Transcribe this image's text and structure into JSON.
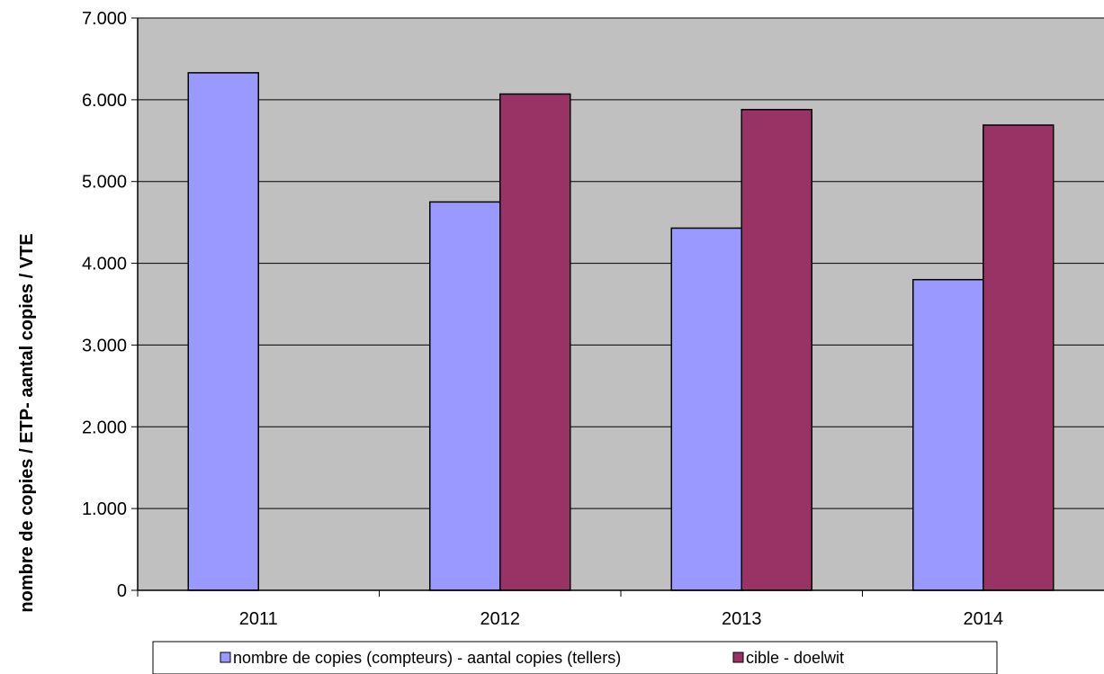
{
  "chart_data": {
    "type": "bar",
    "title": "",
    "xlabel": "",
    "ylabel": "nombre de copies / ETP- aantal copies / VTE",
    "categories": [
      "2011",
      "2012",
      "2013",
      "2014"
    ],
    "ylim": [
      0,
      7000
    ],
    "yticks": [
      0,
      1000,
      2000,
      3000,
      4000,
      5000,
      6000,
      7000
    ],
    "ytick_labels": [
      "0",
      "1.000",
      "2.000",
      "3.000",
      "4.000",
      "5.000",
      "6.000",
      "7.000"
    ],
    "grid": true,
    "legend_position": "bottom",
    "series": [
      {
        "name": "nombre de copies (compteurs) - aantal copies (tellers)",
        "color": "#9999ff",
        "values": [
          6330,
          4750,
          4430,
          3800
        ]
      },
      {
        "name": "cible - doelwit",
        "color": "#993366",
        "values": [
          null,
          6070,
          5880,
          5690
        ]
      }
    ],
    "plot_background": "#c0c0c0"
  }
}
